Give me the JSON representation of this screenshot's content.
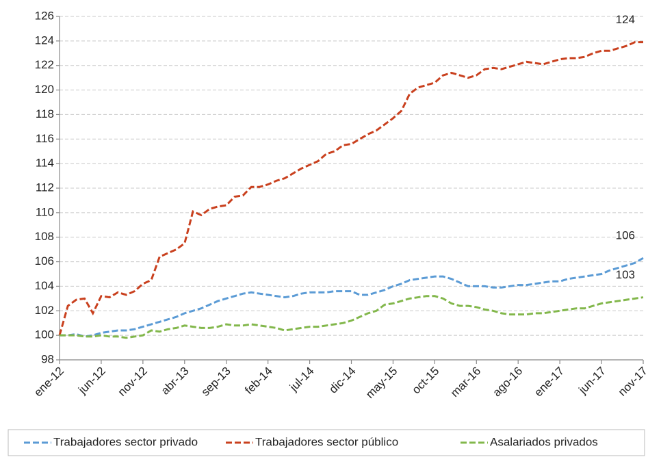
{
  "chart_data": {
    "type": "line",
    "categories": [
      "ene-12",
      null,
      null,
      null,
      null,
      "jun-12",
      null,
      null,
      null,
      null,
      "nov-12",
      null,
      null,
      null,
      null,
      "abr-13",
      null,
      null,
      null,
      null,
      "sep-13",
      null,
      null,
      null,
      null,
      "feb-14",
      null,
      null,
      null,
      null,
      "jul-14",
      null,
      null,
      null,
      null,
      "dic-14",
      null,
      null,
      null,
      null,
      "may-15",
      null,
      null,
      null,
      null,
      "oct-15",
      null,
      null,
      null,
      null,
      "mar-16",
      null,
      null,
      null,
      null,
      "ago-16",
      null,
      null,
      null,
      null,
      "ene-17",
      null,
      null,
      null,
      null,
      "jun-17",
      null,
      null,
      null,
      null,
      "nov-17"
    ],
    "ylim": [
      98,
      126
    ],
    "yticks": [
      98,
      100,
      102,
      104,
      106,
      108,
      110,
      112,
      114,
      116,
      118,
      120,
      122,
      124,
      126
    ],
    "grid": true,
    "legend": "bottom",
    "series": [
      {
        "name": "Trabajadores sector privado",
        "color": "#5b9bd5",
        "end_label": "106",
        "values": [
          100,
          100.0,
          100.1,
          99.9,
          100.0,
          100.2,
          100.3,
          100.4,
          100.4,
          100.5,
          100.7,
          100.9,
          101.1,
          101.3,
          101.5,
          101.8,
          102.0,
          102.2,
          102.5,
          102.8,
          103.0,
          103.2,
          103.4,
          103.5,
          103.4,
          103.3,
          103.2,
          103.1,
          103.2,
          103.4,
          103.5,
          103.5,
          103.5,
          103.6,
          103.6,
          103.6,
          103.3,
          103.3,
          103.5,
          103.7,
          104.0,
          104.2,
          104.5,
          104.6,
          104.7,
          104.8,
          104.8,
          104.6,
          104.3,
          104.0,
          104.0,
          104.0,
          103.9,
          103.9,
          104.0,
          104.1,
          104.1,
          104.2,
          104.3,
          104.4,
          104.4,
          104.6,
          104.7,
          104.8,
          104.9,
          105.0,
          105.3,
          105.5,
          105.7,
          105.9,
          106.3
        ]
      },
      {
        "name": "Trabajadores sector público",
        "color": "#c9401e",
        "end_label": "124",
        "values": [
          100,
          102.4,
          102.9,
          103.0,
          101.8,
          103.2,
          103.1,
          103.5,
          103.3,
          103.6,
          104.2,
          104.5,
          106.4,
          106.7,
          107.0,
          107.5,
          110.1,
          109.8,
          110.3,
          110.5,
          110.6,
          111.3,
          111.4,
          112.1,
          112.1,
          112.3,
          112.6,
          112.8,
          113.2,
          113.6,
          113.9,
          114.2,
          114.8,
          115.0,
          115.5,
          115.6,
          116.0,
          116.4,
          116.7,
          117.2,
          117.7,
          118.3,
          119.7,
          120.2,
          120.4,
          120.6,
          121.2,
          121.4,
          121.2,
          121.0,
          121.2,
          121.7,
          121.8,
          121.7,
          121.9,
          122.1,
          122.3,
          122.2,
          122.1,
          122.3,
          122.5,
          122.6,
          122.6,
          122.7,
          123.0,
          123.2,
          123.2,
          123.4,
          123.6,
          123.9,
          123.9
        ]
      },
      {
        "name": "Asalariados privados",
        "color": "#82b74b",
        "end_label": "103",
        "values": [
          100,
          100.0,
          100.0,
          99.9,
          99.9,
          100.0,
          99.9,
          99.9,
          99.8,
          99.9,
          100.0,
          100.4,
          100.3,
          100.5,
          100.6,
          100.8,
          100.7,
          100.6,
          100.6,
          100.7,
          100.9,
          100.8,
          100.8,
          100.9,
          100.8,
          100.7,
          100.6,
          100.4,
          100.5,
          100.6,
          100.7,
          100.7,
          100.8,
          100.9,
          101.0,
          101.2,
          101.5,
          101.8,
          102.0,
          102.5,
          102.6,
          102.8,
          103.0,
          103.1,
          103.2,
          103.2,
          103.0,
          102.6,
          102.4,
          102.4,
          102.3,
          102.1,
          102.0,
          101.8,
          101.7,
          101.7,
          101.7,
          101.8,
          101.8,
          101.9,
          102.0,
          102.1,
          102.2,
          102.2,
          102.4,
          102.6,
          102.7,
          102.8,
          102.9,
          103.0,
          103.1
        ]
      }
    ]
  }
}
